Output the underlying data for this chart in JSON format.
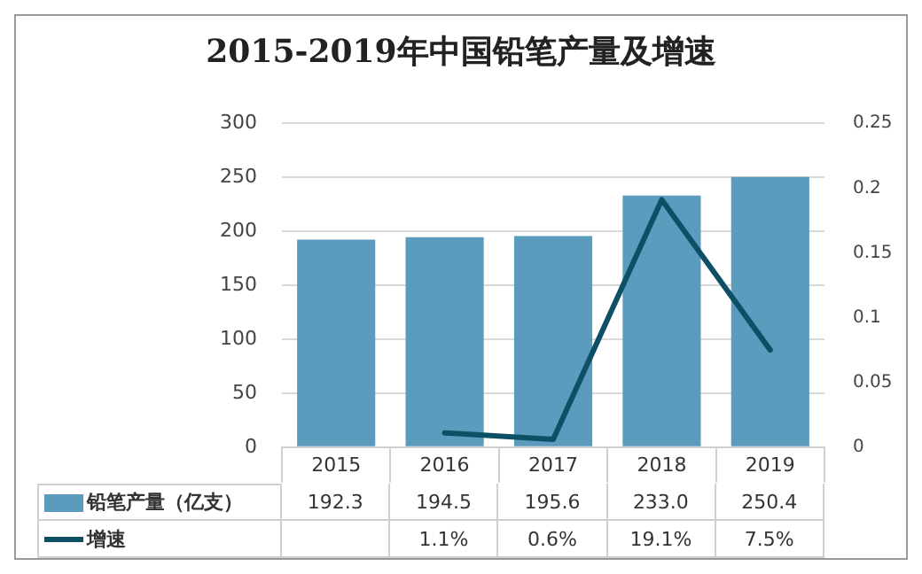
{
  "chart_data": {
    "type": "bar",
    "title": "2015-2019年中国铅笔产量及增速",
    "categories": [
      "2015",
      "2016",
      "2017",
      "2018",
      "2019"
    ],
    "series": [
      {
        "name": "铅笔产量（亿支）",
        "type": "bar",
        "color": "#5b9bbd",
        "values": [
          192.3,
          194.5,
          195.6,
          233.0,
          250.4
        ],
        "value_labels": [
          "192.3",
          "194.5",
          "195.6",
          "233.0",
          "250.4"
        ]
      },
      {
        "name": "增速",
        "type": "line",
        "axis": "y2",
        "color": "#0d5066",
        "values": [
          null,
          0.011,
          0.006,
          0.191,
          0.075
        ],
        "value_labels": [
          null,
          "1.1%",
          "0.6%",
          "19.1%",
          "7.5%"
        ]
      }
    ],
    "ylim": [
      0,
      300
    ],
    "yticks": [
      0,
      50,
      100,
      150,
      200,
      250,
      300
    ],
    "y2lim": [
      0,
      0.25
    ],
    "y2ticks": [
      0,
      0.05,
      0.1,
      0.15,
      0.2,
      0.25
    ],
    "grid": "y",
    "legend": "bottom",
    "marker": "none",
    "line_style": "solid"
  }
}
